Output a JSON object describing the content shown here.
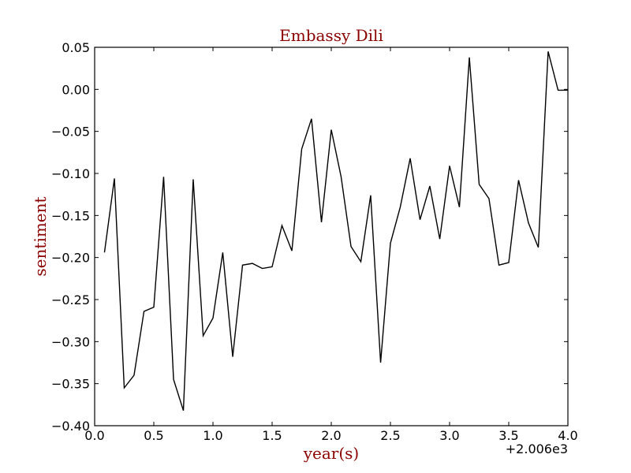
{
  "colors": {
    "label_color": "#8b0000",
    "line_color": "#000000",
    "axes_color": "#000000"
  },
  "chart_data": {
    "type": "line",
    "title": "Embassy Dili",
    "xlabel": "year(s)",
    "ylabel": "sentiment",
    "x_offset_label": "+2.006e3",
    "xlim": [
      0.0,
      4.0
    ],
    "ylim": [
      -0.4,
      0.05
    ],
    "x_ticks": [
      "0.0",
      "0.5",
      "1.0",
      "1.5",
      "2.0",
      "2.5",
      "3.0",
      "3.5",
      "4.0"
    ],
    "y_ticks": [
      "0.05",
      "0.00",
      "−0.05",
      "−0.10",
      "−0.15",
      "−0.20",
      "−0.25",
      "−0.30",
      "−0.35",
      "−0.40"
    ],
    "x_tick_values": [
      0.0,
      0.5,
      1.0,
      1.5,
      2.0,
      2.5,
      3.0,
      3.5,
      4.0
    ],
    "y_tick_values": [
      0.05,
      0.0,
      -0.05,
      -0.1,
      -0.15,
      -0.2,
      -0.25,
      -0.3,
      -0.35,
      -0.4
    ],
    "grid": false,
    "series": [
      {
        "x": [
          0.083,
          0.167,
          0.25,
          0.333,
          0.417,
          0.5,
          0.583,
          0.667,
          0.75,
          0.833,
          0.917,
          1.0,
          1.083,
          1.167,
          1.25,
          1.333,
          1.417,
          1.5,
          1.583,
          1.667,
          1.75,
          1.833,
          1.917,
          2.0,
          2.083,
          2.167,
          2.25,
          2.333,
          2.417,
          2.5,
          2.583,
          2.667,
          2.75,
          2.833,
          2.917,
          3.0,
          3.083,
          3.167,
          3.25,
          3.333,
          3.417,
          3.5,
          3.583,
          3.667,
          3.75,
          3.833,
          3.917,
          4.0
        ],
        "values": [
          -0.194,
          -0.106,
          -0.355,
          -0.34,
          -0.264,
          -0.259,
          -0.104,
          -0.345,
          -0.382,
          -0.107,
          -0.293,
          -0.272,
          -0.194,
          -0.318,
          -0.209,
          -0.207,
          -0.213,
          -0.211,
          -0.162,
          -0.192,
          -0.071,
          -0.035,
          -0.158,
          -0.048,
          -0.104,
          -0.187,
          -0.205,
          -0.126,
          -0.325,
          -0.183,
          -0.14,
          -0.082,
          -0.155,
          -0.115,
          -0.178,
          -0.091,
          -0.14,
          0.038,
          -0.113,
          -0.13,
          -0.209,
          -0.206,
          -0.108,
          -0.159,
          -0.188,
          0.045,
          -0.001,
          -0.001
        ]
      }
    ]
  }
}
